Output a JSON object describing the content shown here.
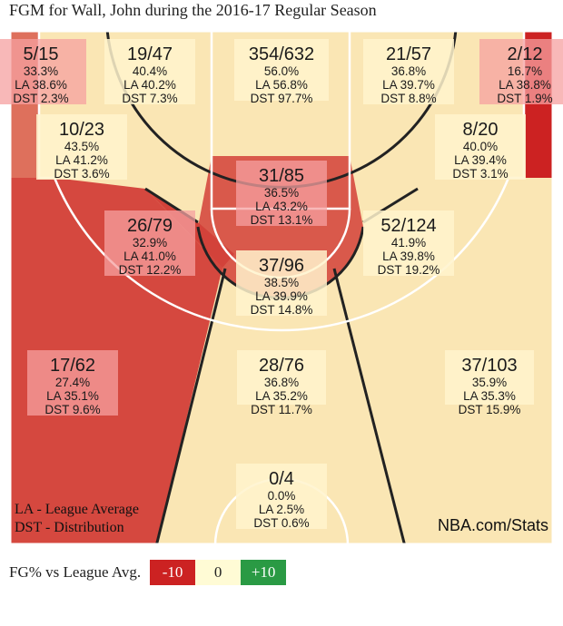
{
  "title": "FGM for Wall, John during the 2016-17 Regular Season",
  "court": {
    "notes": [
      "LA - League Average",
      "DST - Distribution"
    ],
    "source": "NBA.com/Stats"
  },
  "legend": {
    "label": "FG% vs League Avg.",
    "low": "-10",
    "mid": "0",
    "high": "+10"
  },
  "colors": {
    "below": "#cc2222",
    "average": "#fae6b4",
    "above": "#2a9a44",
    "court_line": "#222222",
    "court_border": "#ffffff"
  },
  "chart_data": {
    "type": "heatmap",
    "title": "FGM for Wall, John during the 2016-17 Regular Season",
    "zones": [
      {
        "id": "left-corner-3",
        "made_attempts": "5/15",
        "fg_pct": "33.3%",
        "league_avg": "LA 38.6%",
        "distribution": "DST 2.3%",
        "fg": 33.3,
        "la": 38.6,
        "dst": 2.3
      },
      {
        "id": "left-wing-long-mid",
        "made_attempts": "19/47",
        "fg_pct": "40.4%",
        "league_avg": "LA 40.2%",
        "distribution": "DST 7.3%",
        "fg": 40.4,
        "la": 40.2,
        "dst": 7.3
      },
      {
        "id": "paint-restricted",
        "made_attempts": "354/632",
        "fg_pct": "56.0%",
        "league_avg": "LA 56.8%",
        "distribution": "DST 97.7%",
        "fg": 56.0,
        "la": 56.8,
        "dst": 97.7
      },
      {
        "id": "right-wing-long-mid",
        "made_attempts": "21/57",
        "fg_pct": "36.8%",
        "league_avg": "LA 39.7%",
        "distribution": "DST 8.8%",
        "fg": 36.8,
        "la": 39.7,
        "dst": 8.8
      },
      {
        "id": "right-corner-3",
        "made_attempts": "2/12",
        "fg_pct": "16.7%",
        "league_avg": "LA 38.8%",
        "distribution": "DST 1.9%",
        "fg": 16.7,
        "la": 38.8,
        "dst": 1.9
      },
      {
        "id": "left-baseline-mid",
        "made_attempts": "10/23",
        "fg_pct": "43.5%",
        "league_avg": "LA 41.2%",
        "distribution": "DST 3.6%",
        "fg": 43.5,
        "la": 41.2,
        "dst": 3.6
      },
      {
        "id": "right-baseline-mid",
        "made_attempts": "8/20",
        "fg_pct": "40.0%",
        "league_avg": "LA 39.4%",
        "distribution": "DST 3.1%",
        "fg": 40.0,
        "la": 39.4,
        "dst": 3.1
      },
      {
        "id": "paint-non-ra",
        "made_attempts": "31/85",
        "fg_pct": "36.5%",
        "league_avg": "LA 43.2%",
        "distribution": "DST 13.1%",
        "fg": 36.5,
        "la": 43.2,
        "dst": 13.1
      },
      {
        "id": "left-elbow-mid",
        "made_attempts": "26/79",
        "fg_pct": "32.9%",
        "league_avg": "LA 41.0%",
        "distribution": "DST 12.2%",
        "fg": 32.9,
        "la": 41.0,
        "dst": 12.2
      },
      {
        "id": "right-elbow-mid",
        "made_attempts": "52/124",
        "fg_pct": "41.9%",
        "league_avg": "LA 39.8%",
        "distribution": "DST 19.2%",
        "fg": 41.9,
        "la": 39.8,
        "dst": 19.2
      },
      {
        "id": "top-key-mid",
        "made_attempts": "37/96",
        "fg_pct": "38.5%",
        "league_avg": "LA 39.9%",
        "distribution": "DST 14.8%",
        "fg": 38.5,
        "la": 39.9,
        "dst": 14.8
      },
      {
        "id": "left-wing-3",
        "made_attempts": "17/62",
        "fg_pct": "27.4%",
        "league_avg": "LA 35.1%",
        "distribution": "DST 9.6%",
        "fg": 27.4,
        "la": 35.1,
        "dst": 9.6
      },
      {
        "id": "top-key-3",
        "made_attempts": "28/76",
        "fg_pct": "36.8%",
        "league_avg": "LA 35.2%",
        "distribution": "DST 11.7%",
        "fg": 36.8,
        "la": 35.2,
        "dst": 11.7
      },
      {
        "id": "right-wing-3",
        "made_attempts": "37/103",
        "fg_pct": "35.9%",
        "league_avg": "LA 35.3%",
        "distribution": "DST 15.9%",
        "fg": 35.9,
        "la": 35.3,
        "dst": 15.9
      },
      {
        "id": "backcourt",
        "made_attempts": "0/4",
        "fg_pct": "0.0%",
        "league_avg": "LA 2.5%",
        "distribution": "DST 0.6%",
        "fg": 0.0,
        "la": 2.5,
        "dst": 0.6
      }
    ]
  }
}
